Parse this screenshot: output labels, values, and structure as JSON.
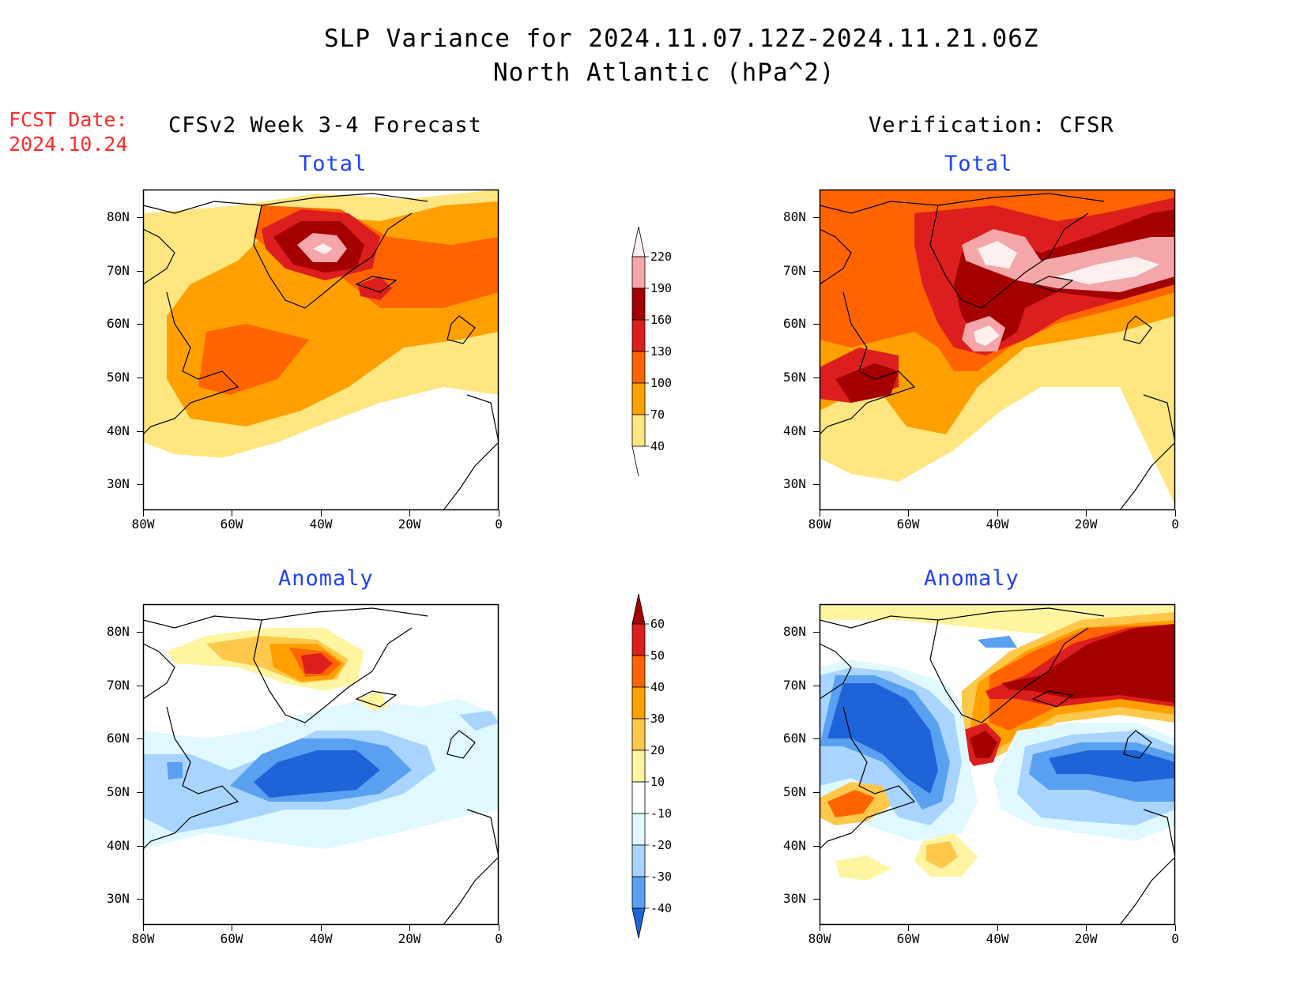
{
  "title": {
    "line1": "SLP Variance for 2024.11.07.12Z-2024.11.21.06Z",
    "line2": "North Atlantic (hPa^2)"
  },
  "fcst_date": {
    "label": "FCST Date:",
    "value": "2024.10.24"
  },
  "columns": {
    "left": "CFSv2 Week 3-4 Forecast",
    "right": "Verification: CFSR"
  },
  "panels": {
    "forecast_total": "Total",
    "verify_total": "Total",
    "forecast_anomaly": "Anomaly",
    "verify_anomaly": "Anomaly"
  },
  "axes": {
    "lat_labels": [
      "80N",
      "70N",
      "60N",
      "50N",
      "40N",
      "30N"
    ],
    "lon_labels": [
      "80W",
      "60W",
      "40W",
      "20W",
      "0"
    ]
  },
  "colorbars": {
    "total": {
      "levels": [
        "220",
        "190",
        "160",
        "130",
        "100",
        "70",
        "40"
      ],
      "colors": [
        "#fff0f0",
        "#f4a6a8",
        "#a50000",
        "#dc1e1e",
        "#ff6400",
        "#ffa000",
        "#ffe680"
      ]
    },
    "anomaly": {
      "levels": [
        "60",
        "50",
        "40",
        "30",
        "20",
        "10",
        "-10",
        "-20",
        "-30",
        "-40"
      ],
      "colors": [
        "#a50000",
        "#dc1e1e",
        "#ff6400",
        "#ffa000",
        "#ffc84a",
        "#fff5a0",
        "#ffffff",
        "#e0f8ff",
        "#a8d4ff",
        "#5aa0f0",
        "#1e64d8"
      ]
    }
  }
}
